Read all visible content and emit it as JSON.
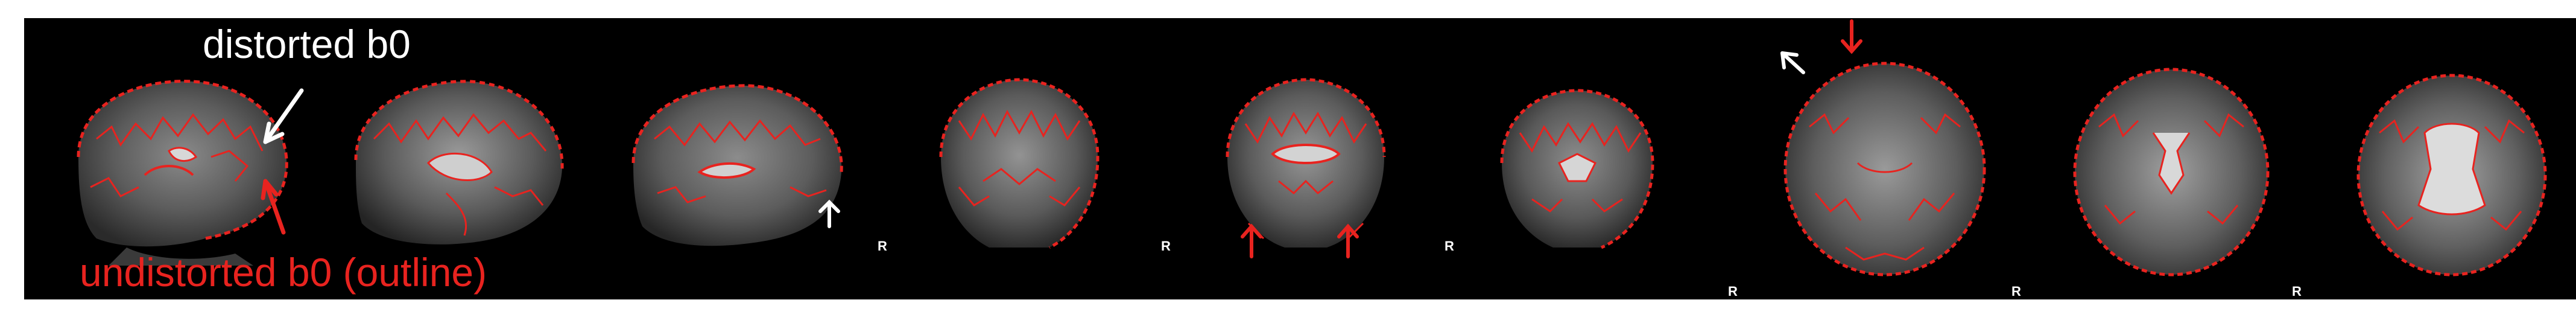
{
  "labels": {
    "distorted": "distorted b0",
    "undistorted": "undistorted b0 (outline)"
  },
  "orientation_marker": "R",
  "colors": {
    "background": "#000000",
    "page": "#ffffff",
    "outline": "#e8231f",
    "annotation_white": "#ffffff"
  },
  "panels": [
    {
      "view": "sagittal",
      "orientation_label": false
    },
    {
      "view": "sagittal",
      "orientation_label": false
    },
    {
      "view": "sagittal",
      "orientation_label": false
    },
    {
      "view": "coronal",
      "orientation_label": true
    },
    {
      "view": "coronal",
      "orientation_label": true
    },
    {
      "view": "coronal",
      "orientation_label": true
    },
    {
      "view": "axial",
      "orientation_label": true
    },
    {
      "view": "axial",
      "orientation_label": true
    },
    {
      "view": "axial",
      "orientation_label": true
    }
  ]
}
